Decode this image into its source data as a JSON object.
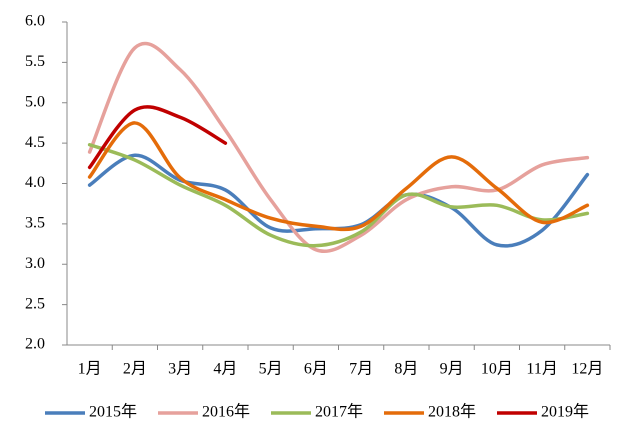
{
  "chart_data": {
    "type": "line",
    "categories": [
      "1月",
      "2月",
      "3月",
      "4月",
      "5月",
      "6月",
      "7月",
      "8月",
      "9月",
      "10月",
      "11月",
      "12月"
    ],
    "series": [
      {
        "name": "2015年",
        "color": "#4a7ebb",
        "values": [
          3.98,
          4.35,
          4.04,
          3.92,
          3.45,
          3.44,
          3.49,
          3.86,
          3.7,
          3.24,
          3.42,
          4.11
        ]
      },
      {
        "name": "2016年",
        "color": "#e6a19c",
        "values": [
          4.39,
          5.68,
          5.41,
          4.66,
          3.8,
          3.18,
          3.36,
          3.8,
          3.96,
          3.92,
          4.23,
          4.32
        ]
      },
      {
        "name": "2017年",
        "color": "#9bbb59",
        "values": [
          4.48,
          4.29,
          3.98,
          3.73,
          3.36,
          3.23,
          3.4,
          3.86,
          3.71,
          3.73,
          3.55,
          3.63
        ]
      },
      {
        "name": "2018年",
        "color": "#e46c0a",
        "values": [
          4.08,
          4.75,
          4.07,
          3.8,
          3.57,
          3.47,
          3.47,
          3.94,
          4.33,
          3.94,
          3.52,
          3.73
        ]
      },
      {
        "name": "2019年",
        "color": "#c00000",
        "values": [
          4.2,
          4.91,
          4.82,
          4.5,
          null,
          null,
          null,
          null,
          null,
          null,
          null,
          null
        ]
      }
    ],
    "ylim": [
      2,
      6
    ],
    "yticks": [
      {
        "value": 2,
        "label": "2.0"
      },
      {
        "value": 2.5,
        "label": "2.5"
      },
      {
        "value": 3,
        "label": "3.0"
      },
      {
        "value": 3.5,
        "label": "3.5"
      },
      {
        "value": 4,
        "label": "4.0"
      },
      {
        "value": 4.5,
        "label": "4.5"
      },
      {
        "value": 5,
        "label": "5.0"
      },
      {
        "value": 5.5,
        "label": "5.5"
      },
      {
        "value": 6,
        "label": "6.0"
      }
    ],
    "grid": false,
    "legend": "bottom",
    "smooth": true
  }
}
